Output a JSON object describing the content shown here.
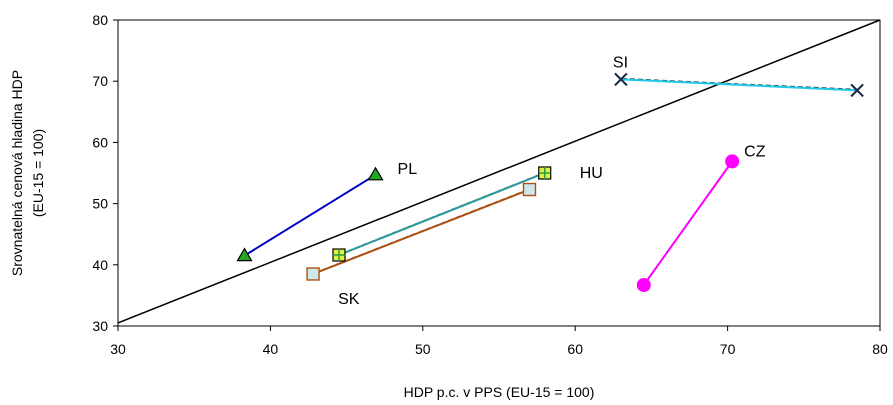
{
  "chart_data": {
    "type": "scatter",
    "title": "",
    "xlabel": "HDP p.c. v PPS (EU-15 = 100)",
    "ylabel_lines": [
      "Srovnatelná cenová hladina HDP",
      "(EU-15 = 100)"
    ],
    "xlim": [
      30,
      80
    ],
    "ylim": [
      30,
      80
    ],
    "xticks": [
      30,
      40,
      50,
      60,
      70,
      80
    ],
    "yticks": [
      30,
      40,
      50,
      60,
      70,
      80
    ],
    "grid": false,
    "legend": false,
    "reference_line": {
      "x": [
        30,
        80
      ],
      "y": [
        30.5,
        80
      ],
      "color": "#000000"
    },
    "series": [
      {
        "name": "PL",
        "color": "#0000cc",
        "marker": "triangle",
        "marker_fill": "#22aa22",
        "x": [
          38.3,
          46.9
        ],
        "y": [
          41.5,
          54.7
        ]
      },
      {
        "name": "HU",
        "color": "#2a9a9a",
        "marker": "square-plus",
        "marker_fill": "#e0f040",
        "x": [
          44.5,
          58.0
        ],
        "y": [
          41.6,
          55.0
        ]
      },
      {
        "name": "SK",
        "color": "#b05010",
        "marker": "square",
        "marker_fill": "#cce8e8",
        "x": [
          42.8,
          57.0
        ],
        "y": [
          38.5,
          52.3
        ]
      },
      {
        "name": "SI",
        "color": "#22c8e8",
        "marker": "x",
        "marker_fill": "#22c8e8",
        "x": [
          63.0,
          78.5
        ],
        "y": [
          70.3,
          68.5
        ]
      },
      {
        "name": "CZ",
        "color": "#ff00ff",
        "marker": "circle",
        "marker_fill": "#ff00ff",
        "x": [
          64.5,
          70.3
        ],
        "y": [
          36.7,
          56.9
        ]
      }
    ]
  }
}
